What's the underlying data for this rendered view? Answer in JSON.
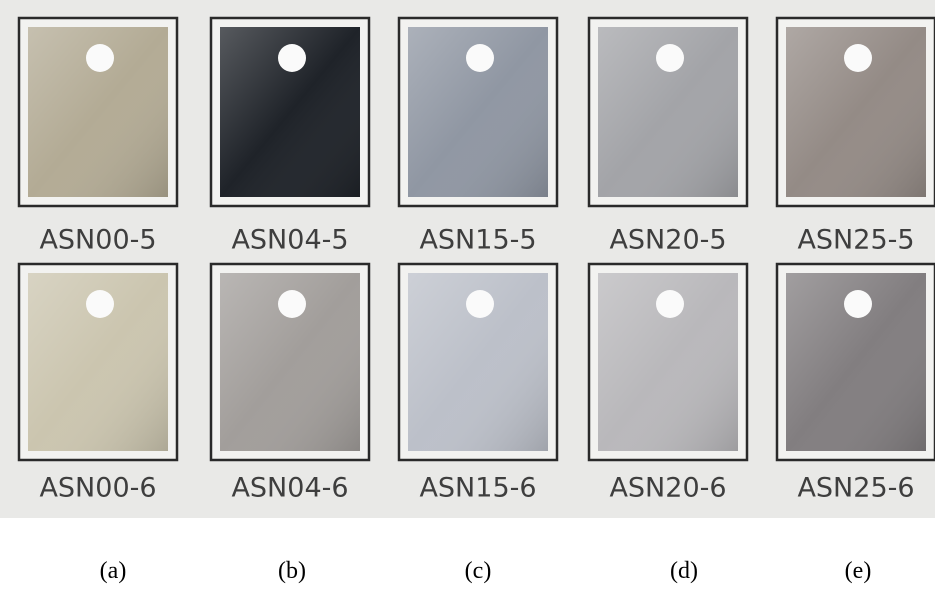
{
  "samples": {
    "rows": [
      [
        "ASN00-5",
        "ASN04-5",
        "ASN15-5",
        "ASN20-5",
        "ASN25-5"
      ],
      [
        "ASN00-6",
        "ASN04-6",
        "ASN15-6",
        "ASN20-6",
        "ASN25-6"
      ]
    ]
  },
  "captions": [
    "(a)",
    "(b)",
    "(c)",
    "(d)",
    "(e)"
  ]
}
